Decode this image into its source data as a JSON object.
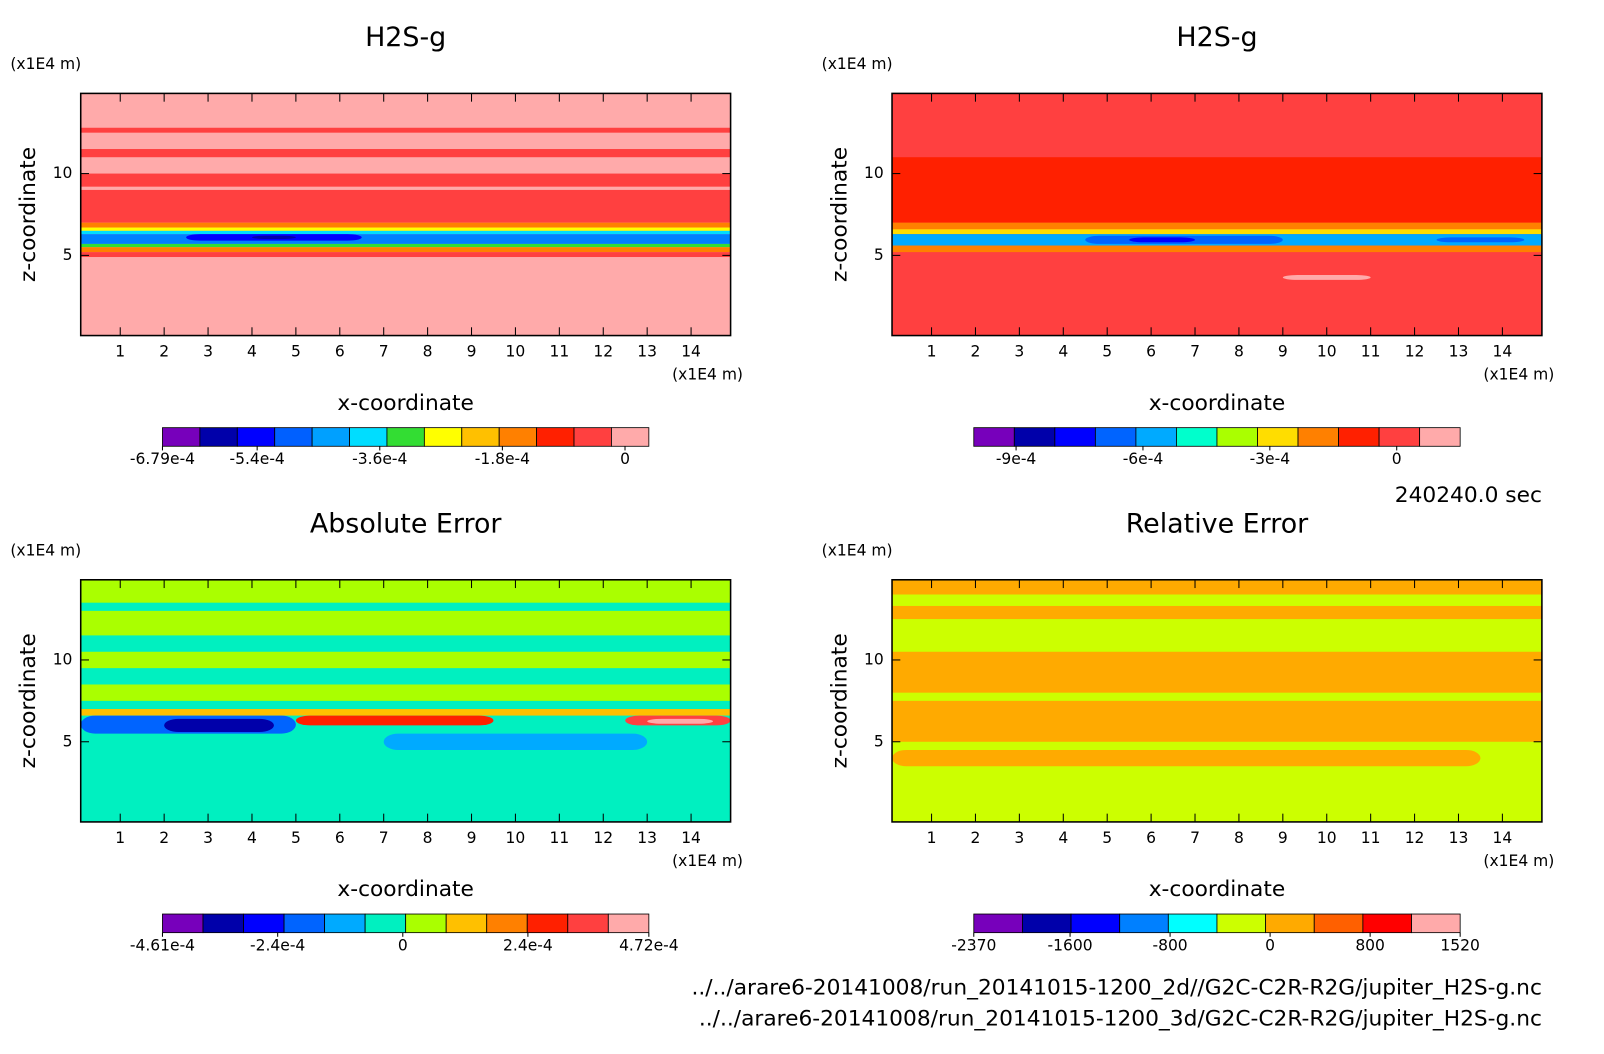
{
  "chart_data": [
    {
      "type": "contour",
      "title": "H2S-g",
      "xlabel": "x-coordinate",
      "ylabel": "z-coordinate",
      "xunit": "(x1E4 m)",
      "yunit": "(x1E4 m)",
      "xlim": [
        0.1,
        14.9
      ],
      "ylim": [
        0.1,
        14.9
      ],
      "xticks": [
        1,
        2,
        3,
        4,
        5,
        6,
        7,
        8,
        9,
        10,
        11,
        12,
        13,
        14
      ],
      "yticks": [
        5,
        10
      ],
      "background": "#ffaaaa",
      "layers": [
        {
          "z": [
            12.5,
            12.8
          ],
          "color": "#ff4040"
        },
        {
          "z": [
            11.0,
            11.5
          ],
          "color": "#ff4040"
        },
        {
          "z": [
            9.2,
            10.0
          ],
          "color": "#ff4040"
        },
        {
          "z": [
            7.0,
            9.0
          ],
          "color": "#ff4040"
        },
        {
          "z": [
            6.7,
            7.0
          ],
          "color": "#ff8000"
        },
        {
          "z": [
            6.5,
            6.7
          ],
          "color": "#ffff00"
        },
        {
          "z": [
            6.3,
            6.5
          ],
          "color": "#00ddff"
        },
        {
          "z": [
            5.7,
            6.3
          ],
          "color": "#0080ff"
        },
        {
          "x": [
            2.5,
            6.5
          ],
          "z": [
            5.9,
            6.3
          ],
          "color": "#0000ff"
        },
        {
          "x": [
            4,
            5
          ],
          "z": [
            6.0,
            6.2
          ],
          "color": "#0000aa"
        },
        {
          "z": [
            5.5,
            5.7
          ],
          "color": "#33dd33"
        },
        {
          "z": [
            5.2,
            5.5
          ],
          "color": "#ff8000"
        },
        {
          "z": [
            4.9,
            5.2
          ],
          "color": "#ff4040"
        }
      ],
      "colorbar": {
        "colors": [
          "#7700bb",
          "#0000aa",
          "#0000ff",
          "#0060ff",
          "#00a0ff",
          "#00ddff",
          "#33dd33",
          "#ffff00",
          "#ffc000",
          "#ff8000",
          "#ff2000",
          "#ff4040",
          "#ffaaaa"
        ],
        "clim": [
          -0.000679,
          3.5e-05
        ],
        "ticks": [
          {
            "value": -0.000679,
            "label": "-6.79e-4"
          },
          {
            "value": -0.00054,
            "label": "-5.4e-4"
          },
          {
            "value": -0.00036,
            "label": "-3.6e-4"
          },
          {
            "value": -0.00018,
            "label": "-1.8e-4"
          },
          0
        ]
      }
    },
    {
      "type": "contour",
      "title": "H2S-g",
      "xlabel": "x-coordinate",
      "ylabel": "z-coordinate",
      "xunit": "(x1E4 m)",
      "yunit": "(x1E4 m)",
      "xlim": [
        0.1,
        14.9
      ],
      "ylim": [
        0.1,
        14.9
      ],
      "xticks": [
        1,
        2,
        3,
        4,
        5,
        6,
        7,
        8,
        9,
        10,
        11,
        12,
        13,
        14
      ],
      "yticks": [
        5,
        10
      ],
      "background": "#ff4040",
      "layers": [
        {
          "z": [
            7.0,
            11.0
          ],
          "color": "#ff2000"
        },
        {
          "z": [
            6.6,
            7.0
          ],
          "color": "#ff8000"
        },
        {
          "z": [
            6.3,
            6.6
          ],
          "color": "#ffdd00"
        },
        {
          "z": [
            5.6,
            6.3
          ],
          "color": "#00aaff"
        },
        {
          "x": [
            4.5,
            9
          ],
          "z": [
            5.7,
            6.2
          ],
          "color": "#0064ff"
        },
        {
          "x": [
            5.5,
            7
          ],
          "z": [
            5.8,
            6.1
          ],
          "color": "#0000ff"
        },
        {
          "x": [
            12.5,
            14.5
          ],
          "z": [
            5.8,
            6.1
          ],
          "color": "#0064ff"
        },
        {
          "z": [
            5.2,
            5.6
          ],
          "color": "#ff8000"
        },
        {
          "x": [
            9,
            11
          ],
          "z": [
            3.5,
            3.8
          ],
          "color": "#ffaaaa"
        }
      ],
      "colorbar": {
        "colors": [
          "#7700bb",
          "#0000aa",
          "#0000ff",
          "#0064ff",
          "#00aaff",
          "#00ffcc",
          "#aaff00",
          "#ffdd00",
          "#ff8000",
          "#ff2000",
          "#ff4040",
          "#ffaaaa"
        ],
        "clim": [
          -0.001,
          0.00015
        ],
        "ticks": [
          {
            "value": -0.0009,
            "label": "-9e-4"
          },
          {
            "value": -0.0006,
            "label": "-6e-4"
          },
          {
            "value": -0.0003,
            "label": "-3e-4"
          },
          0
        ]
      }
    },
    {
      "type": "contour",
      "title": "Absolute Error",
      "xlabel": "x-coordinate",
      "ylabel": "z-coordinate",
      "xunit": "(x1E4 m)",
      "yunit": "(x1E4 m)",
      "xlim": [
        0.1,
        14.9
      ],
      "ylim": [
        0.1,
        14.9
      ],
      "xticks": [
        1,
        2,
        3,
        4,
        5,
        6,
        7,
        8,
        9,
        10,
        11,
        12,
        13,
        14
      ],
      "yticks": [
        5,
        10
      ],
      "background": "#00f0c0",
      "layers": [
        {
          "z": [
            13.5,
            14.9
          ],
          "color": "#aaff00"
        },
        {
          "z": [
            11.5,
            13.0
          ],
          "color": "#aaff00"
        },
        {
          "z": [
            9.5,
            10.5
          ],
          "color": "#aaff00"
        },
        {
          "z": [
            7.5,
            8.5
          ],
          "color": "#aaff00"
        },
        {
          "z": [
            6.6,
            7.0
          ],
          "color": "#ffc000"
        },
        {
          "x": [
            0.1,
            5
          ],
          "z": [
            5.5,
            6.6
          ],
          "color": "#0064ff"
        },
        {
          "x": [
            2,
            4.5
          ],
          "z": [
            5.6,
            6.4
          ],
          "color": "#0000aa"
        },
        {
          "x": [
            5,
            9.5
          ],
          "z": [
            6.0,
            6.6
          ],
          "color": "#ff2000"
        },
        {
          "x": [
            12.5,
            14.9
          ],
          "z": [
            6.0,
            6.6
          ],
          "color": "#ff4040"
        },
        {
          "x": [
            13,
            14.5
          ],
          "z": [
            6.1,
            6.4
          ],
          "color": "#ffaaaa"
        },
        {
          "x": [
            7,
            13
          ],
          "z": [
            4.5,
            5.5
          ],
          "color": "#00aaff"
        }
      ],
      "colorbar": {
        "colors": [
          "#7700bb",
          "#0000aa",
          "#0000ff",
          "#0064ff",
          "#00aaff",
          "#00f0c0",
          "#aaff00",
          "#ffc000",
          "#ff8000",
          "#ff2000",
          "#ff4040",
          "#ffaaaa"
        ],
        "clim": [
          -0.000461,
          0.000472
        ],
        "ticks": [
          {
            "value": -0.000461,
            "label": "-4.61e-4"
          },
          {
            "value": -0.00024,
            "label": "-2.4e-4"
          },
          0,
          {
            "value": 0.00024,
            "label": "2.4e-4"
          },
          {
            "value": 0.000472,
            "label": "4.72e-4"
          }
        ]
      }
    },
    {
      "type": "contour",
      "title": "Relative Error",
      "xlabel": "x-coordinate",
      "ylabel": "z-coordinate",
      "xunit": "(x1E4 m)",
      "yunit": "(x1E4 m)",
      "xlim": [
        0.1,
        14.9
      ],
      "ylim": [
        0.1,
        14.9
      ],
      "xticks": [
        1,
        2,
        3,
        4,
        5,
        6,
        7,
        8,
        9,
        10,
        11,
        12,
        13,
        14
      ],
      "yticks": [
        5,
        10
      ],
      "background": "#ccff00",
      "layers": [
        {
          "z": [
            14.0,
            14.9
          ],
          "color": "#ffaa00"
        },
        {
          "z": [
            12.5,
            13.3
          ],
          "color": "#ffaa00"
        },
        {
          "z": [
            8.0,
            10.5
          ],
          "color": "#ffaa00"
        },
        {
          "z": [
            5.0,
            7.5
          ],
          "color": "#ffaa00"
        },
        {
          "x": [
            0.1,
            13.5
          ],
          "z": [
            3.5,
            4.5
          ],
          "color": "#ffaa00"
        }
      ],
      "colorbar": {
        "colors": [
          "#7700bb",
          "#0000aa",
          "#0000ff",
          "#0080ff",
          "#00ffff",
          "#ccff00",
          "#ffaa00",
          "#ff6000",
          "#ff0000",
          "#ffaaaa"
        ],
        "clim": [
          -2370,
          1520
        ],
        "ticks": [
          -2370,
          -1600,
          -800,
          0,
          800,
          1520
        ]
      }
    }
  ],
  "time_label": "240240.0 sec",
  "files": [
    "../../arare6-20141008/run_20141015-1200_2d//G2C-C2R-R2G/jupiter_H2S-g.nc",
    "../../arare6-20141008/run_20141015-1200_3d/G2C-C2R-R2G/jupiter_H2S-g.nc"
  ]
}
